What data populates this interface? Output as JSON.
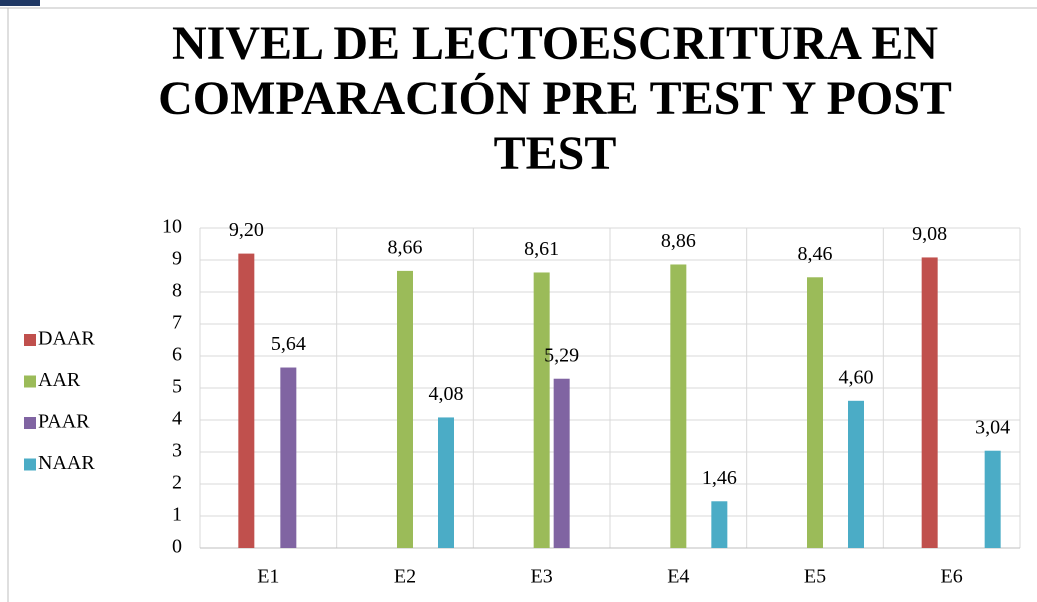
{
  "chart_data": {
    "type": "bar",
    "title": "NIVEL DE LECTOESCRITURA EN COMPARACIÓN PRE TEST Y POST TEST",
    "categories": [
      "E1",
      "E2",
      "E3",
      "E4",
      "E5",
      "E6"
    ],
    "series": [
      {
        "name": "DAAR",
        "color": "#c0504d",
        "values": [
          9.2,
          null,
          null,
          null,
          null,
          9.08
        ],
        "value_labels": [
          "9,20",
          null,
          null,
          null,
          null,
          "9,08"
        ]
      },
      {
        "name": "AAR",
        "color": "#9bbb59",
        "values": [
          null,
          8.66,
          8.61,
          8.86,
          8.46,
          null
        ],
        "value_labels": [
          null,
          "8,66",
          "8,61",
          "8,86",
          "8,46",
          null
        ]
      },
      {
        "name": "PAAR",
        "color": "#8064a2",
        "values": [
          5.64,
          null,
          5.29,
          null,
          null,
          null
        ],
        "value_labels": [
          "5,64",
          null,
          "5,29",
          null,
          null,
          null
        ]
      },
      {
        "name": "NAAR",
        "color": "#4bacc6",
        "values": [
          null,
          4.08,
          null,
          1.46,
          4.6,
          3.04
        ],
        "value_labels": [
          null,
          "4,08",
          null,
          "1,46",
          "4,60",
          "3,04"
        ]
      }
    ],
    "ylim": [
      0,
      10
    ],
    "yticks": [
      0,
      1,
      2,
      3,
      4,
      5,
      6,
      7,
      8,
      9,
      10
    ],
    "grid": true,
    "legend": "left"
  }
}
